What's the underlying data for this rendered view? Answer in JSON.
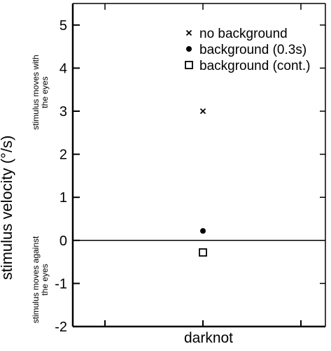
{
  "chart_data": {
    "type": "scatter",
    "ylabel": "stimulus velocity (°/s)",
    "ylim": [
      -2,
      5.5
    ],
    "yticks": [
      5,
      4,
      3,
      2,
      1,
      0,
      -1,
      -2
    ],
    "xlabel": "darknot",
    "zero_line": true,
    "annotations": {
      "upper": [
        "stimulus moves with",
        "the eyes"
      ],
      "lower": [
        "stimulus moves against",
        "the eyes"
      ]
    },
    "legend": {
      "placement": "top-right"
    },
    "series": [
      {
        "name": "no background",
        "marker": "x",
        "x": "darknot",
        "y": 3.0
      },
      {
        "name": "background (0.3s)",
        "marker": "filled-circle",
        "x": "darknot",
        "y": 0.22
      },
      {
        "name": "background (cont.)",
        "marker": "open-square",
        "x": "darknot",
        "y": -0.28
      }
    ]
  }
}
